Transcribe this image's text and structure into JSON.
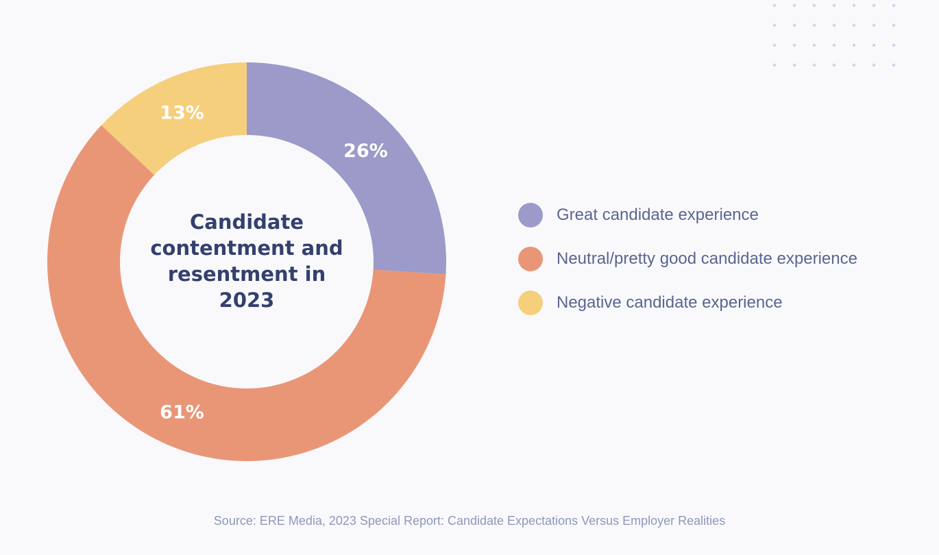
{
  "chart_data": {
    "type": "pie",
    "title": "Candidate contentment and resentment in 2023",
    "title_lines": [
      "Candidate",
      "contentment and",
      "resentment in",
      "2023"
    ],
    "slices": [
      {
        "label": "Great candidate experience",
        "value": 26,
        "value_label": "26%",
        "color": "#9b9ac8"
      },
      {
        "label": "Neutral/pretty good candidate experience",
        "value": 61,
        "value_label": "61%",
        "color": "#e99677"
      },
      {
        "label": "Negative candidate experience",
        "value": 13,
        "value_label": "13%",
        "color": "#f6cf7c"
      }
    ],
    "legend_position": "right",
    "source": "Source: ERE Media, 2023 Special Report: Candidate Expectations Versus Employer Realities"
  }
}
